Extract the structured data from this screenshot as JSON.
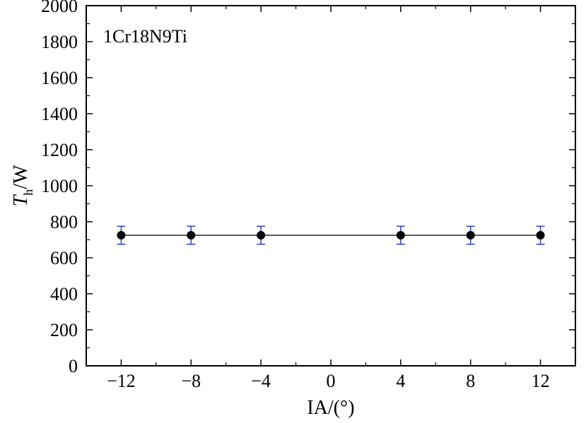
{
  "chart_data": {
    "type": "scatter",
    "title": "",
    "annotation": "1Cr18N9Ti",
    "xlabel": "IA/(°)",
    "ylabel_main": "T",
    "ylabel_sub": "h",
    "ylabel_suffix": "/W",
    "xlim": [
      -14,
      14
    ],
    "ylim": [
      0,
      2000
    ],
    "x_ticks": [
      -12,
      -8,
      -4,
      0,
      4,
      8,
      12
    ],
    "x_tick_labels": [
      "−12",
      "−8",
      "−4",
      "0",
      "4",
      "8",
      "12"
    ],
    "y_ticks": [
      0,
      200,
      400,
      600,
      800,
      1000,
      1200,
      1400,
      1600,
      1800,
      2000
    ],
    "y_tick_labels": [
      "0",
      "200",
      "400",
      "600",
      "800",
      "1000",
      "1200",
      "1400",
      "1600",
      "1800",
      "2000"
    ],
    "grid": false,
    "series": [
      {
        "x": [
          -12,
          -8,
          -4,
          4,
          8,
          12
        ],
        "y": [
          725,
          725,
          725,
          725,
          725,
          725
        ],
        "error": [
          50,
          50,
          50,
          50,
          50,
          50
        ],
        "marker_color": "#000000",
        "error_color": "#2b3fbf",
        "line_color": "#000000"
      }
    ]
  }
}
